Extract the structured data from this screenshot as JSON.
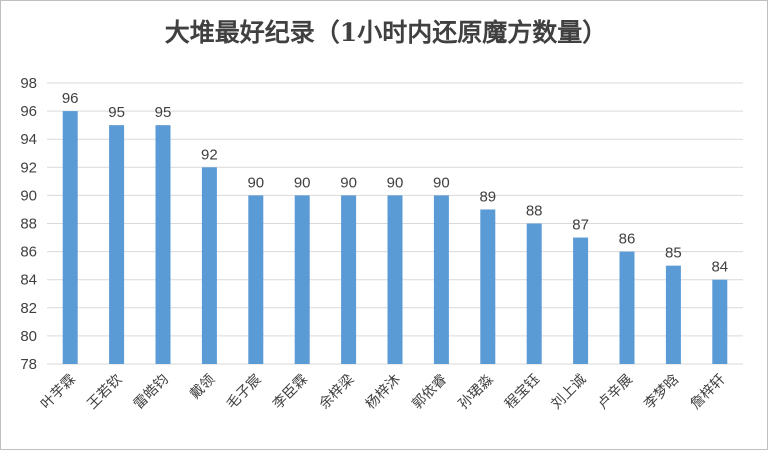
{
  "chart_data": {
    "type": "bar",
    "title": "大堆最好纪录（1小时内还原魔方数量）",
    "xlabel": "",
    "ylabel": "",
    "ylim": [
      78,
      98
    ],
    "yticks": [
      78,
      80,
      82,
      84,
      86,
      88,
      90,
      92,
      94,
      96,
      98
    ],
    "grid": true,
    "legend": "none",
    "bar_color": "#5b9bd5",
    "categories": [
      "叶芋霖",
      "王若钦",
      "雷皓钧",
      "戴领",
      "毛子宸",
      "李臣霖",
      "余梓梁",
      "杨梓沐",
      "郭依睿",
      "孙珺淼",
      "程宝钰",
      "刘上诚",
      "卢辛展",
      "李梦晗",
      "詹梓轩"
    ],
    "values": [
      96,
      95,
      95,
      92,
      90,
      90,
      90,
      90,
      90,
      89,
      88,
      87,
      86,
      85,
      84
    ]
  }
}
